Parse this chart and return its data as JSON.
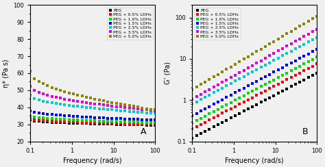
{
  "series_labels": [
    "PEG",
    "PEG + 0.5% LDHs",
    "PEG + 1.0% LDHs",
    "PEG + 1.5% LDHs",
    "PEG + 2.5% LDHs",
    "PEG + 3.5% LDHs",
    "PEG + 5.0% LDHs"
  ],
  "colors": [
    "#000000",
    "#ff0000",
    "#00dd00",
    "#0000ff",
    "#00cccc",
    "#dd00dd",
    "#888800"
  ],
  "freq_min": 0.1,
  "freq_max": 100,
  "n_points": 30,
  "panel_A": {
    "ylabel": "η* (Pa s)",
    "label": "A",
    "ylim": [
      20,
      100
    ],
    "yticks": [
      20,
      30,
      40,
      50,
      60,
      70,
      80,
      90,
      100
    ],
    "start_values": [
      32.5,
      33.5,
      35.0,
      38.0,
      47.0,
      52.5,
      61.0
    ],
    "end_values": [
      29.5,
      30.0,
      31.0,
      32.5,
      36.5,
      38.0,
      38.5
    ],
    "decay_exp": 0.5
  },
  "panel_B": {
    "ylabel": "G’ (Pa)",
    "label": "B",
    "ylim_log": [
      0.1,
      200
    ],
    "yticks_log": [
      0.1,
      1,
      10,
      100
    ],
    "start_values": [
      0.12,
      0.2,
      0.28,
      0.42,
      0.8,
      1.05,
      1.8
    ],
    "end_values": [
      4.5,
      7.5,
      11.0,
      17.0,
      33.0,
      52.0,
      108.0
    ],
    "power": 1.0
  },
  "xlabel": "Frequency (rad/s)",
  "legend_loc": "upper right",
  "marker": "s",
  "markersize": 3.2,
  "bg_color": "#f0f0f0",
  "plot_bg": "#f0f0f0",
  "fig_bg": "#f0f0f0"
}
